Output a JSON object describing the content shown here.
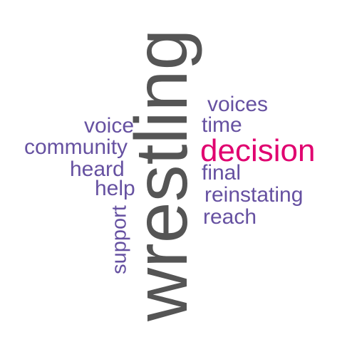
{
  "words": {
    "wrestling": {
      "text": "wrestling",
      "color": "#555555",
      "orientation": "vertical"
    },
    "decision": {
      "text": "decision",
      "color": "#e0006f",
      "orientation": "horizontal"
    },
    "voices": {
      "text": "voices",
      "color": "#6651a1",
      "orientation": "horizontal"
    },
    "time": {
      "text": "time",
      "color": "#6651a1",
      "orientation": "horizontal"
    },
    "final": {
      "text": "final",
      "color": "#6651a1",
      "orientation": "horizontal"
    },
    "reinstating": {
      "text": "reinstating",
      "color": "#6651a1",
      "orientation": "horizontal"
    },
    "reach": {
      "text": "reach",
      "color": "#6651a1",
      "orientation": "horizontal"
    },
    "voice": {
      "text": "voice",
      "color": "#6651a1",
      "orientation": "horizontal"
    },
    "community": {
      "text": "community",
      "color": "#6651a1",
      "orientation": "horizontal"
    },
    "heard": {
      "text": "heard",
      "color": "#6651a1",
      "orientation": "horizontal"
    },
    "help": {
      "text": "help",
      "color": "#6651a1",
      "orientation": "horizontal"
    },
    "support": {
      "text": "support",
      "color": "#6651a1",
      "orientation": "vertical"
    }
  }
}
